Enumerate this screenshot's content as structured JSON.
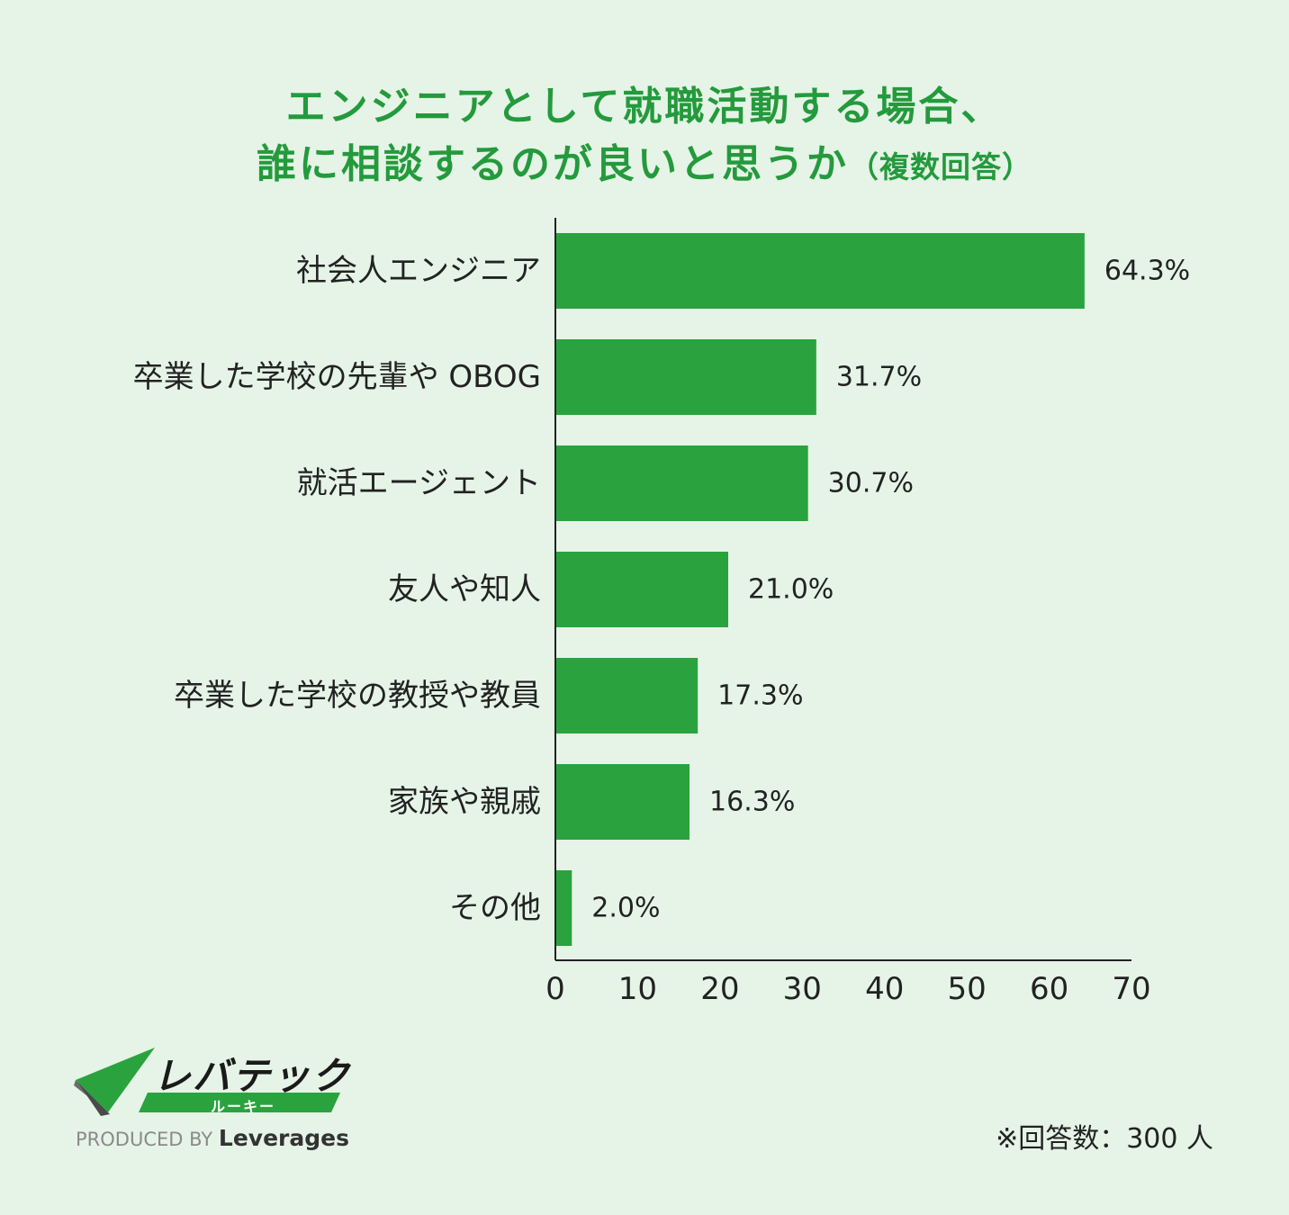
{
  "title_line1": "エンジニアとして就職活動する場合、",
  "title_line2": "誰に相談するのが良いと思うか",
  "title_suffix": "（複数回答）",
  "chart_data": {
    "type": "bar",
    "orientation": "horizontal",
    "categories": [
      "社会人エンジニア",
      "卒業した学校の先輩や OBOG",
      "就活エージェント",
      "友人や知人",
      "卒業した学校の教授や教員",
      "家族や親戚",
      "その他"
    ],
    "values": [
      64.3,
      31.7,
      30.7,
      21.0,
      17.3,
      16.3,
      2.0
    ],
    "value_labels": [
      "64.3%",
      "31.7%",
      "30.7%",
      "21.0%",
      "17.3%",
      "16.3%",
      "2.0%"
    ],
    "xlim": [
      0,
      70
    ],
    "xticks": [
      "0",
      "10",
      "20",
      "30",
      "40",
      "50",
      "60",
      "70"
    ],
    "grid": false,
    "bar_color": "#2aa33e"
  },
  "logo": {
    "name": "レバテック",
    "sub": "ルーキー",
    "produced_by": "PRODUCED BY",
    "brand": "Leverages"
  },
  "footnote": "※回答数：300 人",
  "colors": {
    "background": "#e5f4e7",
    "title": "#249a3c",
    "bar": "#2aa33e"
  }
}
